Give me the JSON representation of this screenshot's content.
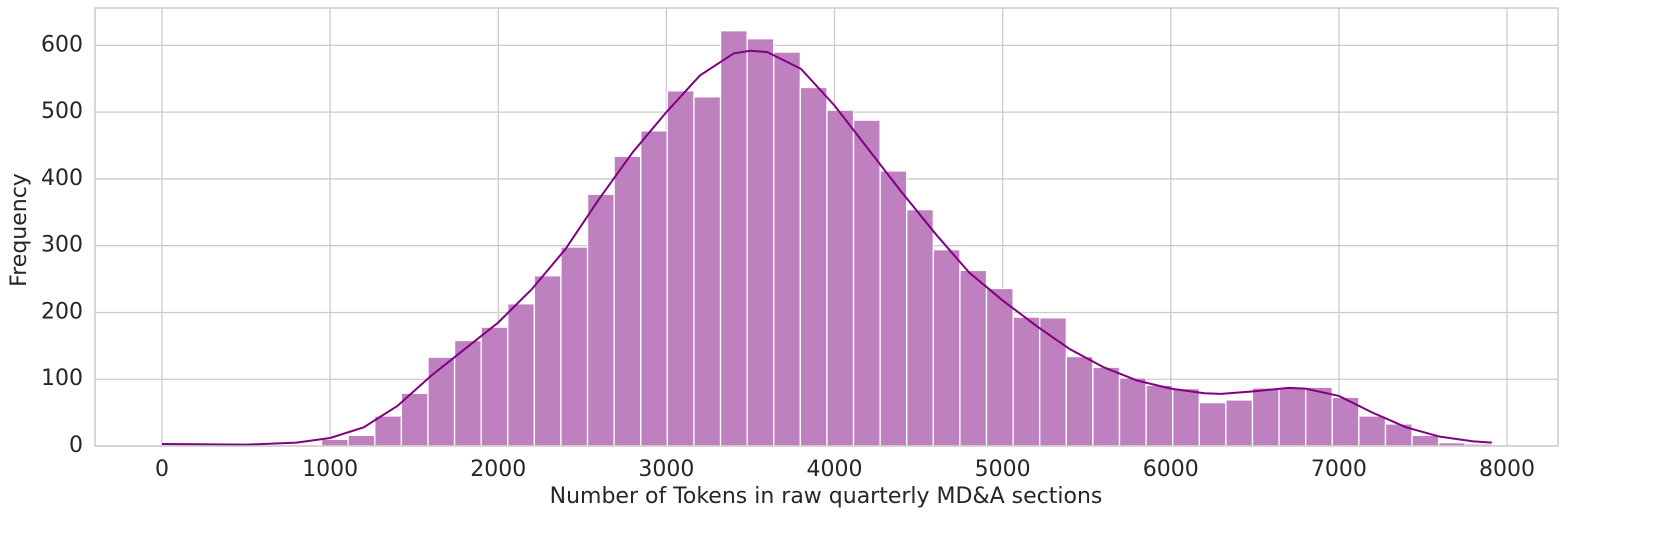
{
  "chart_data": {
    "type": "histogram",
    "xlabel": "Number of Tokens in raw quarterly MD&A sections",
    "ylabel": "Frequency",
    "bins": [
      0,
      158.2,
      316.4,
      474.6,
      632.8,
      791,
      949.2,
      1107.4,
      1265.6,
      1423.8,
      1582,
      1740.2,
      1898.4,
      2056.6,
      2214.8,
      2373,
      2531.2,
      2689.4,
      2847.6,
      3005.8,
      3164,
      3322.2,
      3480.4,
      3638.6,
      3796.8,
      3955,
      4113.2,
      4271.4,
      4429.6,
      4587.8,
      4746,
      4904.2,
      5062.4,
      5220.6,
      5378.8,
      5537,
      5695.2,
      5853.4,
      6011.6,
      6169.8,
      6328,
      6486.2,
      6644.4,
      6802.6,
      6960.8,
      7119,
      7277.2,
      7435.4,
      7593.6,
      7751.8,
      7910
    ],
    "values": [
      0,
      0,
      0,
      0,
      0,
      0,
      10,
      16,
      45,
      79,
      133,
      158,
      178,
      213,
      255,
      298,
      377,
      434,
      472,
      532,
      523,
      622,
      610,
      590,
      537,
      503,
      488,
      412,
      354,
      294,
      263,
      236,
      193,
      192,
      134,
      118,
      102,
      91,
      86,
      65,
      69,
      87,
      87,
      88,
      73,
      45,
      33,
      16,
      5,
      3
    ],
    "color": "#bf80bf",
    "kde": {
      "color": "#800080",
      "x": [
        0,
        500,
        800,
        1000,
        1200,
        1400,
        1600,
        1800,
        2000,
        2200,
        2400,
        2600,
        2800,
        3000,
        3200,
        3400,
        3500,
        3600,
        3800,
        4000,
        4200,
        4400,
        4600,
        4800,
        5000,
        5200,
        5400,
        5600,
        5800,
        6000,
        6200,
        6300,
        6500,
        6700,
        6800,
        7000,
        7200,
        7400,
        7600,
        7800,
        7910
      ],
      "values": [
        3,
        2,
        5,
        12,
        28,
        60,
        105,
        145,
        185,
        235,
        295,
        370,
        440,
        500,
        555,
        588,
        592,
        590,
        565,
        510,
        445,
        380,
        318,
        260,
        218,
        180,
        145,
        118,
        98,
        86,
        79,
        78,
        82,
        87,
        86,
        75,
        50,
        28,
        14,
        7,
        5
      ]
    },
    "xlim": [
      -398.5,
      8303.3
    ],
    "ylim": [
      0,
      656
    ],
    "xticks": [
      0,
      1000,
      2000,
      3000,
      4000,
      5000,
      6000,
      7000,
      8000
    ],
    "yticks": [
      0,
      100,
      200,
      300,
      400,
      500,
      600
    ],
    "grid": true
  }
}
